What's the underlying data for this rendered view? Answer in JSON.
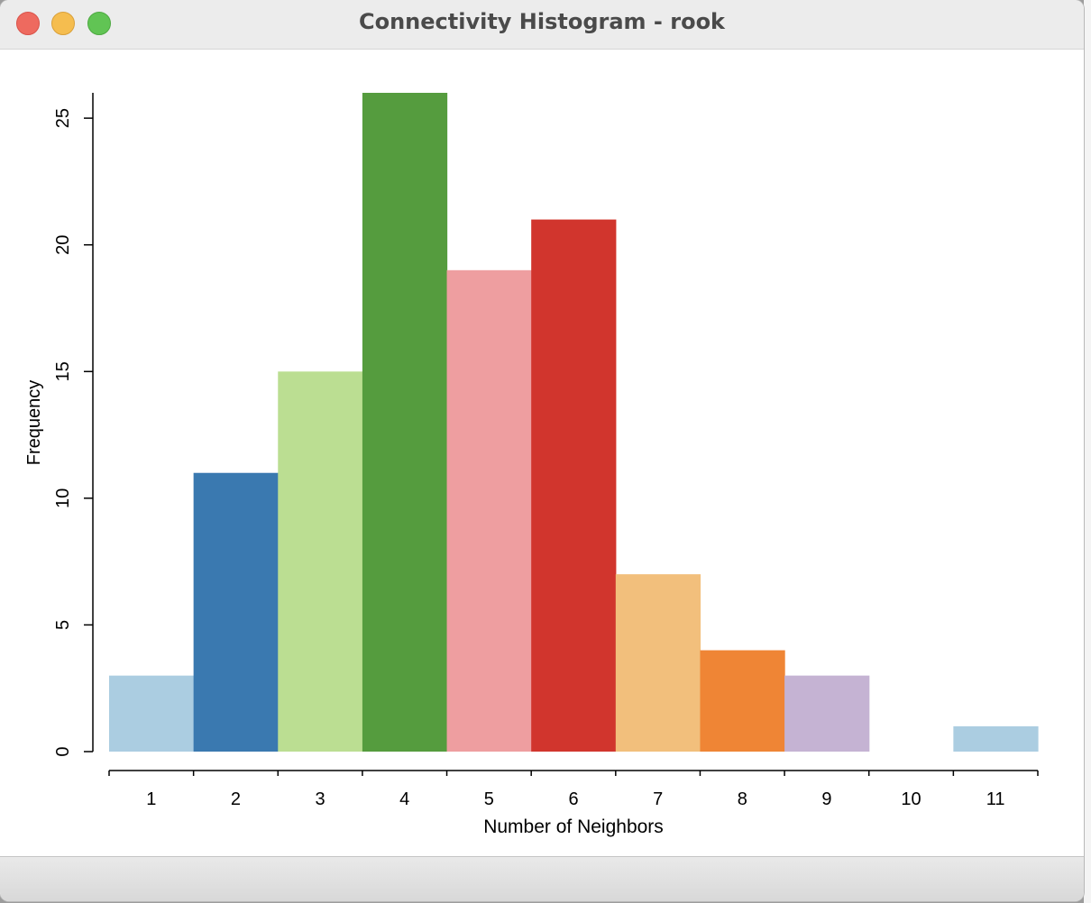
{
  "window": {
    "title": "Connectivity Histogram - rook"
  },
  "chart_data": {
    "type": "bar",
    "categories": [
      "1",
      "2",
      "3",
      "4",
      "5",
      "6",
      "7",
      "8",
      "9",
      "10",
      "11"
    ],
    "values": [
      3,
      11,
      15,
      26,
      19,
      21,
      7,
      4,
      3,
      0,
      1
    ],
    "colors": [
      "#abcde1",
      "#3a79b0",
      "#bbde92",
      "#559c3e",
      "#ee9ea0",
      "#d1352d",
      "#f2bf7c",
      "#ef8535",
      "#c5b3d3",
      "#ffffff",
      "#abcde1"
    ],
    "xlabel": "Number of Neighbors",
    "ylabel": "Frequency",
    "ylim": [
      0,
      26
    ],
    "yticks": [
      0,
      5,
      10,
      15,
      20,
      25
    ],
    "grid": false
  }
}
